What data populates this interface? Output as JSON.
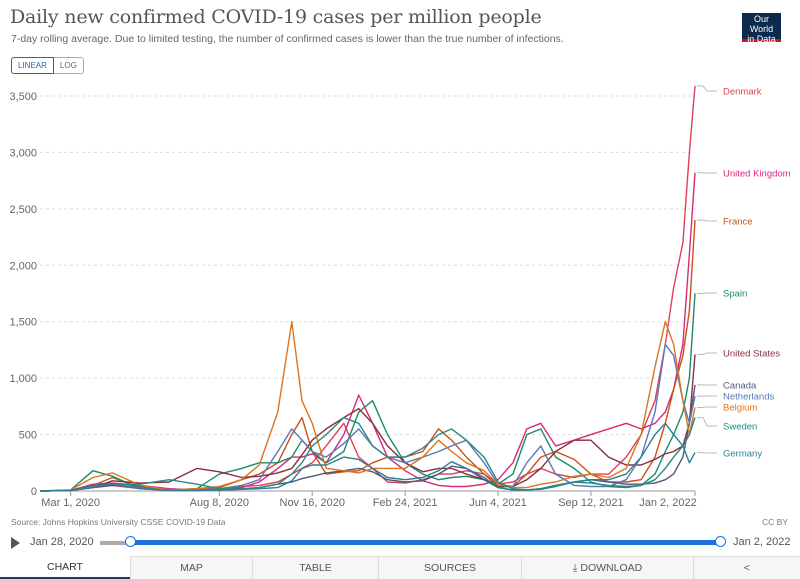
{
  "header": {
    "title": "Daily new confirmed COVID-19 cases per million people",
    "subtitle": "7-day rolling average. Due to limited testing, the number of confirmed cases is lower than the true number of infections.",
    "logo": "Our World in Data",
    "logo_line1": "Our World",
    "logo_line2": "in Data"
  },
  "controls": {
    "linear": "LINEAR",
    "log": "LOG"
  },
  "footer": {
    "source": "Source: Johns Hopkins University CSSE COVID-19 Data",
    "license": "CC BY",
    "start_date": "Jan 28, 2020",
    "end_date": "Jan 2, 2022"
  },
  "tabs": [
    {
      "label": "CHART"
    },
    {
      "label": "MAP"
    },
    {
      "label": "TABLE"
    },
    {
      "label": "SOURCES"
    },
    {
      "label": "⤓ DOWNLOAD"
    },
    {
      "label": "<"
    }
  ],
  "chart_data": {
    "type": "line",
    "title": "Daily new confirmed COVID-19 cases per million people",
    "ylim": [
      0,
      3500
    ],
    "yticks": [
      0,
      500,
      1000,
      1500,
      2000,
      2500,
      3000,
      3500
    ],
    "ytick_labels": [
      "0",
      "500",
      "1,000",
      "1,500",
      "2,000",
      "2,500",
      "3,000",
      "3,500"
    ],
    "xlim": [
      "2020-01-28",
      "2022-01-02"
    ],
    "xticks": [
      "2020-03-01",
      "2020-08-08",
      "2020-11-16",
      "2021-02-24",
      "2021-06-04",
      "2021-09-12",
      "2022-01-02"
    ],
    "xtick_labels": [
      "Mar 1, 2020",
      "Aug 8, 2020",
      "Nov 16, 2020",
      "Feb 24, 2021",
      "Jun 4, 2021",
      "Sep 12, 2021",
      "Jan 2, 2022"
    ],
    "x": [
      "2020-01-28",
      "2020-03-01",
      "2020-03-25",
      "2020-04-15",
      "2020-05-15",
      "2020-06-15",
      "2020-07-15",
      "2020-08-08",
      "2020-09-01",
      "2020-09-20",
      "2020-10-10",
      "2020-10-25",
      "2020-11-05",
      "2020-11-16",
      "2020-12-01",
      "2020-12-20",
      "2021-01-05",
      "2021-01-20",
      "2021-02-05",
      "2021-02-24",
      "2021-03-15",
      "2021-04-01",
      "2021-04-15",
      "2021-05-01",
      "2021-05-20",
      "2021-06-04",
      "2021-06-20",
      "2021-07-05",
      "2021-07-20",
      "2021-08-05",
      "2021-08-25",
      "2021-09-12",
      "2021-10-01",
      "2021-10-20",
      "2021-11-05",
      "2021-11-20",
      "2021-12-01",
      "2021-12-10",
      "2021-12-20",
      "2021-12-27",
      "2022-01-02"
    ],
    "series": [
      {
        "name": "Denmark",
        "color": "#e0405a",
        "values": [
          0,
          5,
          30,
          50,
          20,
          5,
          5,
          20,
          40,
          50,
          80,
          150,
          200,
          250,
          400,
          600,
          300,
          200,
          80,
          70,
          100,
          150,
          150,
          180,
          150,
          60,
          80,
          150,
          200,
          150,
          120,
          150,
          150,
          300,
          500,
          800,
          1300,
          1800,
          2200,
          3000,
          3590
        ]
      },
      {
        "name": "United Kingdom",
        "color": "#d9287a",
        "values": [
          0,
          5,
          60,
          70,
          50,
          20,
          10,
          10,
          30,
          80,
          200,
          300,
          300,
          330,
          250,
          500,
          850,
          600,
          300,
          180,
          90,
          50,
          40,
          40,
          60,
          100,
          250,
          550,
          600,
          400,
          450,
          500,
          550,
          600,
          550,
          600,
          700,
          900,
          1300,
          2100,
          2820
        ]
      },
      {
        "name": "France",
        "color": "#c8501a",
        "values": [
          0,
          5,
          50,
          120,
          30,
          10,
          15,
          30,
          100,
          150,
          250,
          500,
          650,
          350,
          150,
          170,
          180,
          250,
          300,
          300,
          350,
          550,
          450,
          300,
          150,
          40,
          40,
          150,
          300,
          350,
          280,
          150,
          80,
          80,
          100,
          300,
          600,
          900,
          1200,
          1600,
          2400
        ]
      },
      {
        "name": "Spain",
        "color": "#1f8a6a",
        "values": [
          0,
          10,
          180,
          130,
          20,
          10,
          20,
          150,
          200,
          250,
          250,
          300,
          450,
          350,
          250,
          350,
          700,
          800,
          500,
          250,
          150,
          100,
          120,
          130,
          100,
          60,
          150,
          500,
          550,
          300,
          200,
          80,
          40,
          30,
          50,
          150,
          350,
          500,
          700,
          1000,
          1750
        ]
      },
      {
        "name": "United States",
        "color": "#8a2f3c",
        "values": [
          0,
          5,
          30,
          90,
          70,
          80,
          200,
          170,
          120,
          130,
          160,
          200,
          320,
          450,
          550,
          650,
          730,
          600,
          400,
          250,
          170,
          200,
          200,
          150,
          100,
          40,
          40,
          100,
          200,
          350,
          450,
          450,
          300,
          230,
          230,
          280,
          330,
          350,
          400,
          600,
          1210
        ]
      },
      {
        "name": "Canada",
        "color": "#4d5a7a",
        "values": [
          0,
          5,
          30,
          50,
          40,
          10,
          10,
          10,
          15,
          30,
          60,
          80,
          110,
          130,
          160,
          180,
          200,
          170,
          100,
          80,
          90,
          150,
          220,
          200,
          100,
          30,
          10,
          10,
          20,
          50,
          80,
          100,
          80,
          60,
          60,
          70,
          100,
          150,
          300,
          600,
          940
        ]
      },
      {
        "name": "Netherlands",
        "color": "#5a78b8",
        "values": [
          0,
          5,
          40,
          60,
          30,
          5,
          10,
          20,
          50,
          100,
          350,
          550,
          450,
          350,
          300,
          420,
          550,
          400,
          300,
          250,
          300,
          350,
          400,
          450,
          250,
          60,
          40,
          250,
          400,
          150,
          50,
          40,
          40,
          100,
          300,
          700,
          1300,
          1200,
          800,
          600,
          840
        ]
      },
      {
        "name": "Belgium",
        "color": "#d8761f",
        "values": [
          0,
          10,
          120,
          160,
          50,
          10,
          20,
          40,
          100,
          230,
          700,
          1500,
          800,
          600,
          200,
          180,
          160,
          200,
          200,
          200,
          300,
          450,
          350,
          250,
          180,
          60,
          30,
          30,
          60,
          80,
          130,
          150,
          120,
          200,
          500,
          1100,
          1500,
          1300,
          800,
          500,
          740
        ]
      },
      {
        "name": "Sweden",
        "color": "#2a8a80",
        "values": [
          0,
          5,
          50,
          60,
          60,
          100,
          60,
          20,
          20,
          30,
          60,
          150,
          250,
          400,
          500,
          650,
          600,
          400,
          300,
          300,
          380,
          500,
          550,
          450,
          300,
          80,
          20,
          10,
          20,
          50,
          80,
          70,
          50,
          40,
          50,
          100,
          200,
          300,
          400,
          500,
          650
        ]
      },
      {
        "name": "Germany",
        "color": "#2a7f95",
        "values": [
          0,
          5,
          50,
          60,
          20,
          5,
          5,
          10,
          15,
          20,
          30,
          90,
          200,
          230,
          230,
          300,
          280,
          200,
          120,
          100,
          120,
          180,
          260,
          200,
          120,
          30,
          10,
          10,
          15,
          40,
          80,
          100,
          100,
          150,
          300,
          500,
          600,
          500,
          400,
          250,
          340
        ]
      }
    ]
  }
}
